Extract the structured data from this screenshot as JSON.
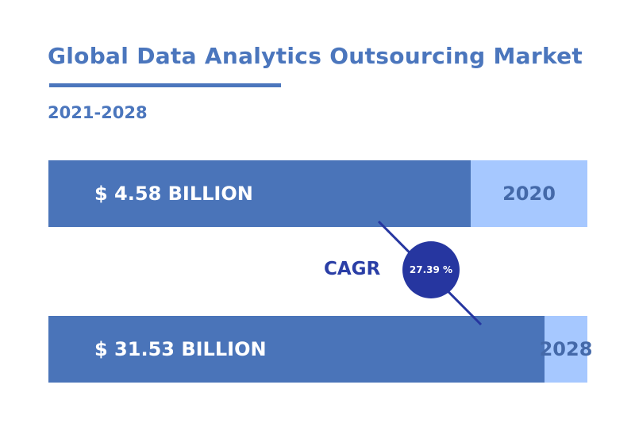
{
  "chart_data": {
    "type": "bar",
    "title": "Global Data Analytics Outsourcing Market",
    "subtitle": "2021-2028",
    "categories": [
      "2020",
      "2028"
    ],
    "values": [
      4.58,
      31.53
    ],
    "value_labels": [
      "$ 4.58 BILLION",
      "$ 31.53 BILLION"
    ],
    "annotation": {
      "label": "CAGR",
      "value": "27.39 %"
    }
  },
  "colors": {
    "title": "#4b76bd",
    "bar_fill": "#4a74b9",
    "bar_track": "#a6c8ff",
    "cagr": "#2636a0"
  }
}
